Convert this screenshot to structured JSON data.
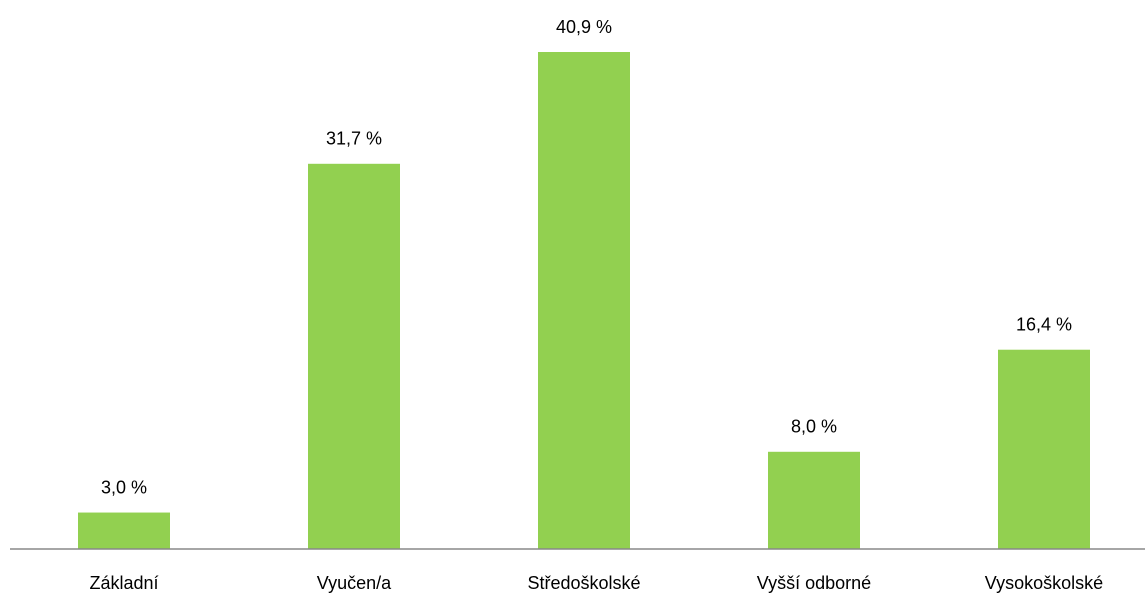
{
  "chart_data": {
    "type": "bar",
    "categories": [
      "Základní",
      "Vyučen/a",
      "Středoškolské",
      "Vyšší odborné",
      "Vysokoškolské"
    ],
    "values": [
      3.0,
      31.7,
      40.9,
      8.0,
      16.4
    ],
    "value_labels": [
      "3,0 %",
      "31,7 %",
      "40,9 %",
      "8,0 %",
      "16,4 %"
    ],
    "color": "#92d050"
  }
}
